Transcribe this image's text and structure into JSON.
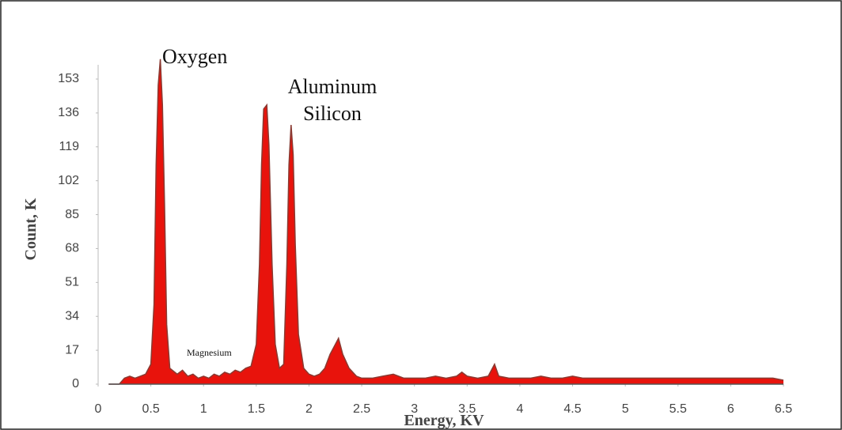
{
  "chart_data": {
    "type": "area",
    "color": "#e8130c",
    "line_color": "#8a3a32",
    "x_label": "Energy, KV",
    "y_label": "Count, K",
    "annotations": [
      "Oxygen",
      "Aluminum",
      "Silicon",
      "Magnesium"
    ],
    "x": [
      0.1,
      0.2,
      0.25,
      0.3,
      0.35,
      0.4,
      0.45,
      0.5,
      0.53,
      0.55,
      0.57,
      0.59,
      0.61,
      0.63,
      0.65,
      0.68,
      0.75,
      0.8,
      0.85,
      0.9,
      0.95,
      1.0,
      1.05,
      1.1,
      1.15,
      1.2,
      1.25,
      1.3,
      1.35,
      1.4,
      1.45,
      1.5,
      1.53,
      1.55,
      1.57,
      1.6,
      1.62,
      1.65,
      1.68,
      1.72,
      1.76,
      1.79,
      1.81,
      1.83,
      1.85,
      1.87,
      1.9,
      1.95,
      2.0,
      2.05,
      2.1,
      2.15,
      2.2,
      2.25,
      2.28,
      2.32,
      2.38,
      2.45,
      2.5,
      2.6,
      2.7,
      2.8,
      2.9,
      3.0,
      3.1,
      3.2,
      3.3,
      3.4,
      3.45,
      3.5,
      3.6,
      3.7,
      3.76,
      3.8,
      3.9,
      4.0,
      4.1,
      4.2,
      4.3,
      4.4,
      4.5,
      4.6,
      4.7,
      4.8,
      4.9,
      5.0,
      5.2,
      5.4,
      5.6,
      5.8,
      6.0,
      6.2,
      6.4,
      6.5
    ],
    "values": [
      0,
      0,
      3,
      4,
      3,
      4,
      5,
      10,
      40,
      110,
      150,
      163,
      140,
      90,
      30,
      8,
      5,
      7,
      4,
      5,
      3,
      4,
      3,
      5,
      4,
      6,
      5,
      7,
      6,
      8,
      9,
      20,
      60,
      110,
      138,
      140,
      120,
      60,
      20,
      8,
      10,
      60,
      110,
      130,
      115,
      70,
      25,
      8,
      5,
      4,
      5,
      8,
      15,
      20,
      23,
      15,
      8,
      4,
      3,
      3,
      4,
      5,
      3,
      3,
      3,
      4,
      3,
      4,
      6,
      4,
      3,
      4,
      10,
      4,
      3,
      3,
      3,
      4,
      3,
      3,
      4,
      3,
      3,
      3,
      3,
      3,
      3,
      3,
      3,
      3,
      3,
      3,
      3,
      2
    ],
    "xlim": [
      0,
      6.5
    ],
    "ylim": [
      0,
      165
    ],
    "xticks": [
      0,
      0.5,
      1,
      1.5,
      2,
      2.5,
      3,
      3.5,
      4,
      4.5,
      5,
      5.5,
      6,
      6.5
    ],
    "yticks": [
      0,
      17,
      34,
      51,
      68,
      85,
      102,
      119,
      136,
      153
    ]
  }
}
